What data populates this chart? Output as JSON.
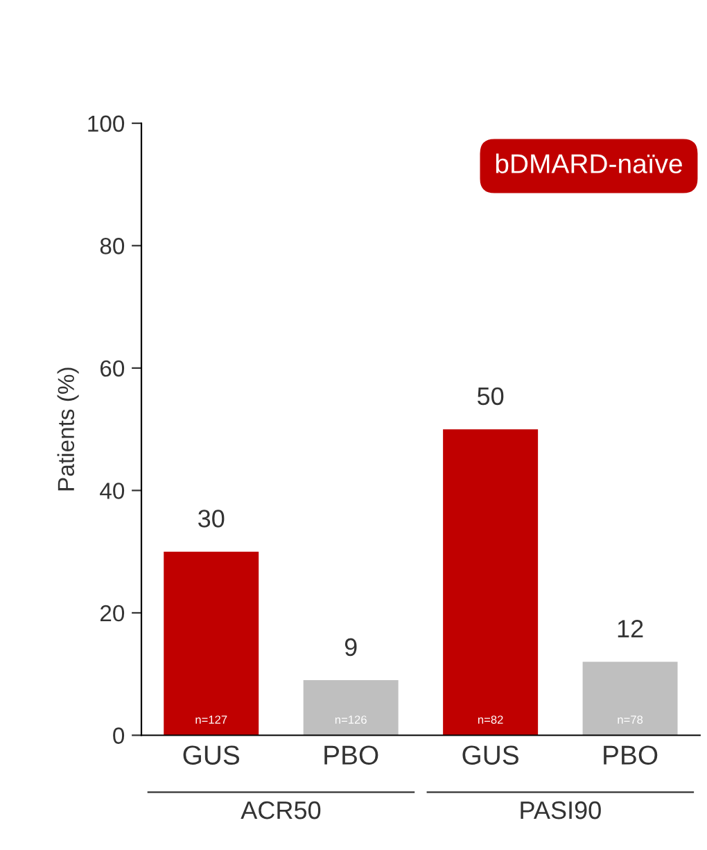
{
  "chart_data": {
    "type": "bar",
    "title": "bDMARD-naïve",
    "ylabel": "Patients (%)",
    "categories": [
      "GUS",
      "PBO",
      "GUS",
      "PBO"
    ],
    "values": [
      30,
      9,
      50,
      12
    ],
    "colors": [
      "#c00000",
      "#bfbfbf",
      "#c00000",
      "#bfbfbf"
    ],
    "data_labels": true,
    "ylim": [
      0,
      100
    ],
    "yticks": [
      0,
      20,
      40,
      60,
      80,
      100
    ],
    "annotations": [
      "n=127",
      "n=126",
      "n=82",
      "n=78",
      "ACR50",
      "PASI90"
    ]
  }
}
